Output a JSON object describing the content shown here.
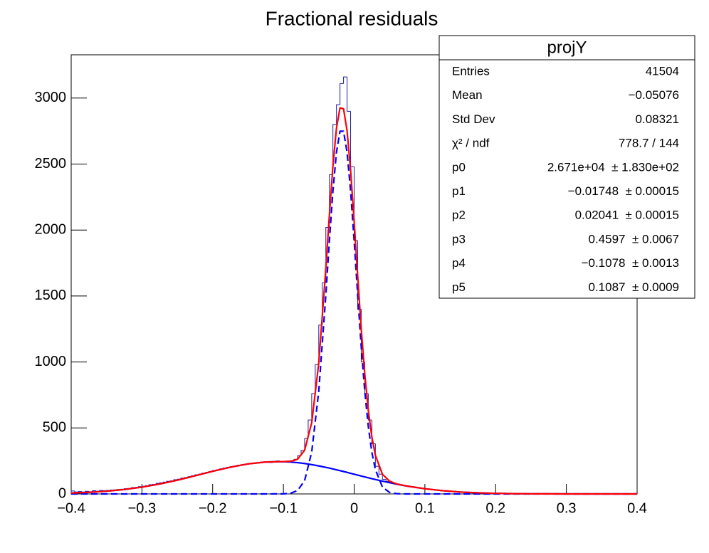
{
  "chart_data": {
    "type": "histogram",
    "title": "Fractional residuals",
    "xlim": [
      -0.4,
      0.4
    ],
    "ylim": [
      0,
      3328
    ],
    "xticks": [
      {
        "value": -0.4,
        "label": "−0.4"
      },
      {
        "value": -0.3,
        "label": "−0.3"
      },
      {
        "value": -0.2,
        "label": "−0.2"
      },
      {
        "value": -0.1,
        "label": "−0.1"
      },
      0,
      0.1,
      0.2,
      0.3,
      0.4
    ],
    "yticks": [
      0,
      500,
      1000,
      1500,
      2000,
      2500,
      3000
    ],
    "color": "#1a1aa6",
    "bins": [
      -0.4,
      -0.395,
      -0.39,
      -0.385,
      -0.38,
      -0.375,
      -0.37,
      -0.365,
      -0.36,
      -0.355,
      -0.35,
      -0.345,
      -0.34,
      -0.335,
      -0.33,
      -0.325,
      -0.32,
      -0.315,
      -0.31,
      -0.305,
      -0.3,
      -0.295,
      -0.29,
      -0.285,
      -0.28,
      -0.275,
      -0.27,
      -0.265,
      -0.26,
      -0.255,
      -0.25,
      -0.245,
      -0.24,
      -0.235,
      -0.23,
      -0.225,
      -0.22,
      -0.215,
      -0.21,
      -0.205,
      -0.2,
      -0.195,
      -0.19,
      -0.185,
      -0.18,
      -0.175,
      -0.17,
      -0.165,
      -0.16,
      -0.155,
      -0.15,
      -0.145,
      -0.14,
      -0.135,
      -0.13,
      -0.125,
      -0.12,
      -0.115,
      -0.11,
      -0.105,
      -0.1,
      -0.095,
      -0.09,
      -0.085,
      -0.08,
      -0.075,
      -0.07,
      -0.065,
      -0.06,
      -0.055,
      -0.05,
      -0.045,
      -0.04,
      -0.035,
      -0.03,
      -0.025,
      -0.02,
      -0.015,
      -0.01,
      -0.005,
      0,
      0.005,
      0.01,
      0.015,
      0.02,
      0.025,
      0.03,
      0.035,
      0.04,
      0.045,
      0.05,
      0.055,
      0.06,
      0.065,
      0.07,
      0.075,
      0.08,
      0.085,
      0.09,
      0.095,
      0.1,
      0.105,
      0.11,
      0.115,
      0.12,
      0.125,
      0.13,
      0.135,
      0.14,
      0.145,
      0.15,
      0.155,
      0.16,
      0.165,
      0.17,
      0.175,
      0.18,
      0.185,
      0.19,
      0.195,
      0.2,
      0.205,
      0.21,
      0.215,
      0.22,
      0.225,
      0.23,
      0.235,
      0.24,
      0.245,
      0.25,
      0.255,
      0.26,
      0.265,
      0.27,
      0.275,
      0.28,
      0.285,
      0.29,
      0.295,
      0.3,
      0.305,
      0.31,
      0.315,
      0.32,
      0.325,
      0.33,
      0.335,
      0.34,
      0.345,
      0.35,
      0.355,
      0.36,
      0.365,
      0.37,
      0.375,
      0.38,
      0.385,
      0.39,
      0.395,
      0.4
    ],
    "values": [
      22,
      15,
      18,
      14,
      20,
      17,
      24,
      20,
      26,
      25,
      27,
      30,
      31,
      34,
      36,
      40,
      42,
      48,
      50,
      55,
      58,
      63,
      70,
      72,
      80,
      84,
      90,
      96,
      99,
      108,
      112,
      120,
      124,
      131,
      138,
      145,
      150,
      158,
      163,
      170,
      178,
      183,
      190,
      196,
      202,
      207,
      212,
      218,
      222,
      226,
      230,
      234,
      235,
      240,
      242,
      245,
      238,
      246,
      250,
      243,
      248,
      250,
      252,
      262,
      290,
      330,
      420,
      560,
      760,
      980,
      1280,
      1600,
      2020,
      2420,
      2800,
      2950,
      3110,
      3160,
      2900,
      2480,
      1920,
      1400,
      1000,
      760,
      560,
      380,
      210,
      150,
      110,
      95,
      88,
      80,
      75,
      68,
      62,
      58,
      55,
      50,
      46,
      44,
      40,
      36,
      33,
      30,
      27,
      25,
      22,
      20,
      18,
      16,
      15,
      13,
      12,
      10,
      9,
      8,
      7,
      6,
      6,
      5,
      5,
      4,
      4,
      3,
      3,
      3,
      2,
      2,
      2,
      2,
      1,
      1,
      1,
      1,
      1,
      1,
      1,
      0,
      1,
      0,
      0,
      1,
      0,
      0,
      1,
      0,
      0,
      0,
      0,
      0,
      0,
      0,
      0,
      0,
      0,
      0,
      0,
      0,
      0,
      0
    ],
    "curve_x": [
      -0.4,
      -0.375,
      -0.35,
      -0.325,
      -0.3,
      -0.275,
      -0.25,
      -0.225,
      -0.2,
      -0.175,
      -0.15,
      -0.125,
      -0.1,
      -0.09,
      -0.08,
      -0.07,
      -0.06,
      -0.05,
      -0.04,
      -0.035,
      -0.03,
      -0.025,
      -0.02,
      -0.015,
      -0.01,
      -0.005,
      0,
      0.005,
      0.01,
      0.015,
      0.02,
      0.025,
      0.03,
      0.04,
      0.05,
      0.06,
      0.07,
      0.075,
      0.1,
      0.125,
      0.15,
      0.175,
      0.2,
      0.225,
      0.25,
      0.275,
      0.3,
      0.325,
      0.35,
      0.375,
      0.4
    ],
    "curves": [
      {
        "color": "#0000ff",
        "style": "solid",
        "values": [
          6.6,
          12.0,
          20.6,
          33.4,
          51.5,
          75.3,
          104.4,
          137.3,
          171.3,
          202.6,
          227.4,
          242.0,
          244.3,
          241.7,
          237.0,
          230.5,
          222.2,
          212.4,
          201.5,
          195.6,
          189.4,
          183.1,
          176.5,
          169.9,
          163.2,
          156.4,
          149.6,
          142.7,
          135.9,
          129.0,
          122.4,
          115.8,
          109.4,
          96.9,
          85.2,
          74.1,
          64.0,
          59.3,
          39.3,
          24.6,
          14.6,
          8.3,
          4.4,
          2.2,
          1.1,
          0.5,
          0.2,
          0.1,
          0,
          0,
          0
        ]
      },
      {
        "color": "#0000ff",
        "style": "dashed",
        "values": [
          0,
          0,
          0,
          0,
          0,
          0,
          0,
          0,
          0,
          0,
          0,
          0,
          0.8,
          5.0,
          25.5,
          101,
          317,
          780,
          1509,
          1918,
          2296,
          2589,
          2749,
          2749,
          2589,
          2296,
          1918,
          1509,
          1117,
          780,
          512,
          317,
          184,
          52,
          11.7,
          2.0,
          0.3,
          0.1,
          0,
          0,
          0,
          0,
          0,
          0,
          0,
          0,
          0,
          0,
          0,
          0,
          0
        ]
      },
      {
        "color": "#ff0000",
        "style": "solid",
        "values": [
          6.6,
          12.0,
          20.6,
          33.4,
          51.5,
          75.3,
          104.4,
          137.3,
          171.3,
          202.6,
          227.4,
          242.0,
          245.1,
          246.7,
          262.5,
          331.5,
          539.2,
          992.4,
          1710.5,
          2113.6,
          2485.4,
          2772.1,
          2925.5,
          2918.9,
          2752.2,
          2452.4,
          2067.6,
          1651.7,
          1252.9,
          909.0,
          634.4,
          432.8,
          293.4,
          148.9,
          96.9,
          76.1,
          64.3,
          59.4,
          39.3,
          24.6,
          14.6,
          8.3,
          4.4,
          2.2,
          1.1,
          0.5,
          0.2,
          0.1,
          0,
          0,
          0
        ]
      }
    ],
    "stats_box": {
      "title": "projY",
      "rows": [
        {
          "label": "Entries",
          "value": "41504"
        },
        {
          "label": "Mean",
          "value": "−0.05076"
        },
        {
          "label": "Std Dev",
          "value": "0.08321"
        },
        {
          "label": "χ² / ndf",
          "value": "778.7 / 144"
        },
        {
          "label": "p0",
          "value": "2.671e+04  ± 1.830e+02"
        },
        {
          "label": "p1",
          "value": "−0.01748  ± 0.00015"
        },
        {
          "label": "p2",
          "value": "0.02041  ± 0.00015"
        },
        {
          "label": "p3",
          "value": "0.4597  ± 0.0067"
        },
        {
          "label": "p4",
          "value": "−0.1078  ± 0.0013"
        },
        {
          "label": "p5",
          "value": "0.1087  ± 0.0009"
        }
      ]
    }
  }
}
